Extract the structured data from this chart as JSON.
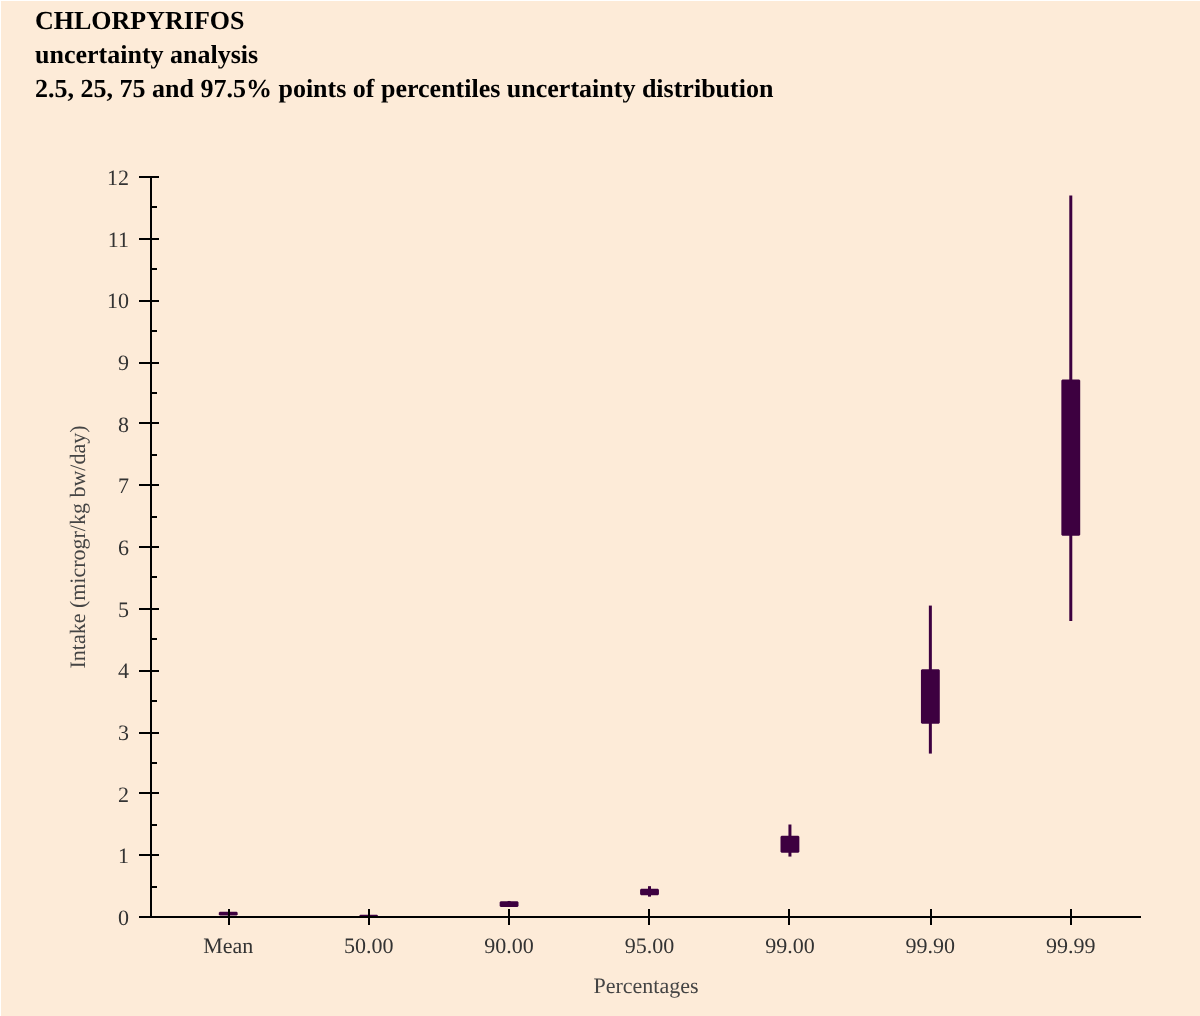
{
  "chart_data": {
    "type": "box",
    "title": "CHLORPYRIFOS",
    "subtitle": "uncertainty analysis",
    "annotations": [
      "2.5, 25, 75 and 97.5% points of percentiles uncertainty distribution"
    ],
    "xlabel": "Percentages",
    "ylabel": "Intake (microgr/kg bw/day)",
    "categories": [
      "Mean",
      "50.00",
      "90.00",
      "95.00",
      "99.00",
      "99.90",
      "99.99"
    ],
    "series": [
      {
        "color": "#3d0040",
        "boxes": [
          {
            "low": 0.03,
            "q1": 0.04,
            "q3": 0.07,
            "high": 0.08
          },
          {
            "low": 0.0,
            "q1": 0.01,
            "q3": 0.02,
            "high": 0.03
          },
          {
            "low": 0.17,
            "q1": 0.18,
            "q3": 0.24,
            "high": 0.26
          },
          {
            "low": 0.33,
            "q1": 0.37,
            "q3": 0.44,
            "high": 0.5
          },
          {
            "low": 0.98,
            "q1": 1.06,
            "q3": 1.3,
            "high": 1.5
          },
          {
            "low": 2.65,
            "q1": 3.15,
            "q3": 4.0,
            "high": 5.05
          },
          {
            "low": 4.8,
            "q1": 6.2,
            "q3": 8.7,
            "high": 11.7
          }
        ]
      }
    ],
    "ylim": [
      0,
      12
    ],
    "yticks": [
      0,
      1,
      2,
      3,
      4,
      5,
      6,
      7,
      8,
      9,
      10,
      11,
      12
    ],
    "grid": false
  }
}
